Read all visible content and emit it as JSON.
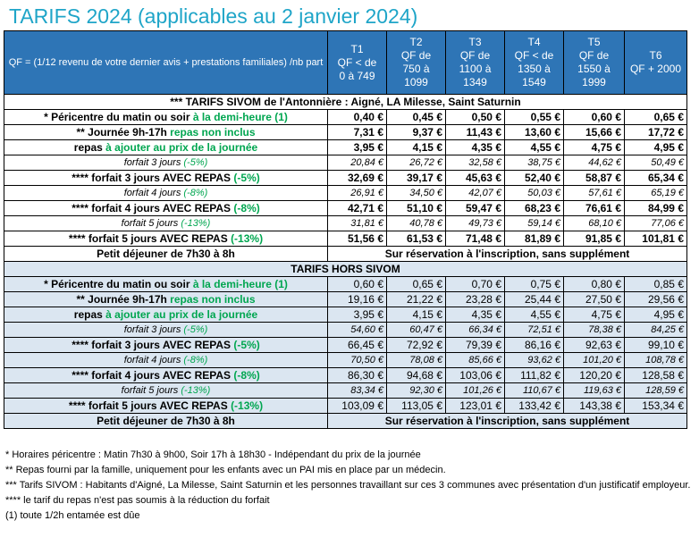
{
  "title": "TARIFS 2024 (applicables au 2 janvier 2024)",
  "header": {
    "qf": "QF = (1/12 revenu de votre dernier avis + prestations familiales) /nb part",
    "cols": [
      {
        "t": "T1",
        "l1": "QF < de",
        "l2": "0 à 749"
      },
      {
        "t": "T2",
        "l1": "QF de",
        "l2": "750 à",
        "l3": "1099"
      },
      {
        "t": "T3",
        "l1": "QF de",
        "l2": "1100 à",
        "l3": "1349"
      },
      {
        "t": "T4",
        "l1": "QF < de",
        "l2": "1350 à",
        "l3": "1549"
      },
      {
        "t": "T5",
        "l1": "QF de",
        "l2": "1550 à",
        "l3": "1999"
      },
      {
        "t": "T6",
        "l1": "QF + 2000"
      }
    ]
  },
  "section1": {
    "title": "*** TARIFS SIVOM de l'Antonnière : Aigné, LA Milesse, Saint Saturnin",
    "rows": [
      {
        "lbl": "* Péricentre du matin ou soir ",
        "g": "à la demi-heure (1)",
        "style": "b",
        "v": [
          "0,40 €",
          "0,45 €",
          "0,50 €",
          "0,55 €",
          "0,60 €",
          "0,65 €"
        ]
      },
      {
        "lbl": "** Journée 9h-17h ",
        "g": "repas non inclus",
        "style": "b",
        "v": [
          "7,31 €",
          "9,37 €",
          "11,43 €",
          "13,60 €",
          "15,66 €",
          "17,72 €"
        ]
      },
      {
        "lbl": "repas ",
        "g": "à ajouter au prix de la journée",
        "style": "b",
        "v": [
          "3,95 €",
          "4,15 €",
          "4,35 €",
          "4,55 €",
          "4,75 €",
          "4,95 €"
        ]
      },
      {
        "lbl": "forfait 3 jours ",
        "g": "(-5%)",
        "style": "it",
        "v": [
          "20,84 €",
          "26,72 €",
          "32,58 €",
          "38,75 €",
          "44,62 €",
          "50,49 €"
        ]
      },
      {
        "lbl": "**** forfait 3 jours AVEC REPAS ",
        "g": "(-5%)",
        "style": "b",
        "v": [
          "32,69 €",
          "39,17 €",
          "45,63 €",
          "52,40 €",
          "58,87 €",
          "65,34 €"
        ]
      },
      {
        "lbl": "forfait 4 jours ",
        "g": "(-8%)",
        "style": "it",
        "v": [
          "26,91 €",
          "34,50 €",
          "42,07 €",
          "50,03 €",
          "57,61 €",
          "65,19 €"
        ]
      },
      {
        "lbl": "**** forfait 4 jours AVEC REPAS ",
        "g": "(-8%)",
        "style": "b",
        "v": [
          "42,71 €",
          "51,10 €",
          "59,47 €",
          "68,23 €",
          "76,61 €",
          "84,99 €"
        ]
      },
      {
        "lbl": "forfait 5 jours ",
        "g": "(-13%)",
        "style": "it",
        "v": [
          "31,81 €",
          "40,78 €",
          "49,73 €",
          "59,14 €",
          "68,10 €",
          "77,06 €"
        ]
      },
      {
        "lbl": "**** forfait 5 jours AVEC REPAS ",
        "g": "(-13%)",
        "style": "b",
        "v": [
          "51,56 €",
          "61,53 €",
          "71,48 €",
          "81,89 €",
          "91,85 €",
          "101,81 €"
        ]
      }
    ],
    "breakfast": {
      "lbl": "Petit déjeuner de 7h30 à 8h",
      "note": "Sur réservation à l'inscription, sans supplément"
    }
  },
  "section2": {
    "title": "TARIFS HORS SIVOM",
    "rows": [
      {
        "lbl": "* Péricentre du matin ou soir ",
        "g": "à la demi-heure (1)",
        "style": "b",
        "v": [
          "0,60 €",
          "0,65 €",
          "0,70 €",
          "0,75 €",
          "0,80 €",
          "0,85 €"
        ]
      },
      {
        "lbl": "** Journée 9h-17h ",
        "g": "repas non inclus",
        "style": "b",
        "v": [
          "19,16 €",
          "21,22 €",
          "23,28 €",
          "25,44 €",
          "27,50 €",
          "29,56 €"
        ]
      },
      {
        "lbl": "repas ",
        "g": "à ajouter au prix de la journée",
        "style": "b",
        "v": [
          "3,95 €",
          "4,15 €",
          "4,35 €",
          "4,55 €",
          "4,75 €",
          "4,95 €"
        ]
      },
      {
        "lbl": "forfait 3 jours ",
        "g": "(-5%)",
        "style": "it",
        "v": [
          "54,60 €",
          "60,47 €",
          "66,34 €",
          "72,51 €",
          "78,38 €",
          "84,25 €"
        ]
      },
      {
        "lbl": "**** forfait 3 jours AVEC REPAS ",
        "g": "(-5%)",
        "style": "b",
        "v": [
          "66,45 €",
          "72,92 €",
          "79,39 €",
          "86,16 €",
          "92,63 €",
          "99,10 €"
        ]
      },
      {
        "lbl": "forfait 4 jours ",
        "g": "(-8%)",
        "style": "it",
        "v": [
          "70,50 €",
          "78,08 €",
          "85,66 €",
          "93,62 €",
          "101,20 €",
          "108,78 €"
        ]
      },
      {
        "lbl": "**** forfait 4 jours AVEC REPAS ",
        "g": "(-8%)",
        "style": "b",
        "v": [
          "86,30 €",
          "94,68 €",
          "103,06 €",
          "111,82 €",
          "120,20 €",
          "128,58 €"
        ]
      },
      {
        "lbl": "forfait 5 jours ",
        "g": "(-13%)",
        "style": "it",
        "v": [
          "83,34 €",
          "92,30 €",
          "101,26 €",
          "110,67 €",
          "119,63 €",
          "128,59 €"
        ]
      },
      {
        "lbl": "**** forfait 5 jours AVEC REPAS ",
        "g": "(-13%)",
        "style": "b",
        "v": [
          "103,09 €",
          "113,05 €",
          "123,01 €",
          "133,42 €",
          "143,38 €",
          "153,34 €"
        ]
      }
    ],
    "breakfast": {
      "lbl": "Petit déjeuner de 7h30 à 8h",
      "note": "Sur réservation à l'inscription, sans supplément"
    }
  },
  "notes": [
    "* Horaires péricentre : Matin 7h30 à 9h00, Soir 17h à 18h30 - Indépendant du prix de la journée",
    "** Repas fourni par la famille, uniquement pour les enfants avec un PAI mis en place par un médecin.",
    "*** Tarifs SIVOM : Habitants d'Aigné, La Milesse, Saint Saturnin et les personnes travaillant sur ces 3 communes avec présentation d'un justificatif employeur.",
    "**** le tarif du repas n'est pas soumis à la réduction du forfait",
    "(1) toute 1/2h entamée est dûe"
  ]
}
